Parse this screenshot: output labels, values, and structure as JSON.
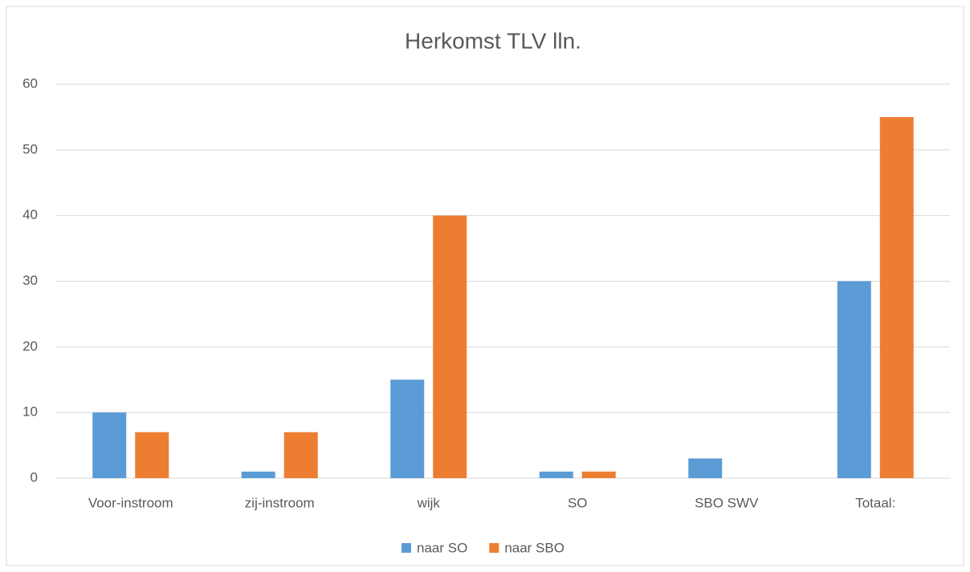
{
  "chart_data": {
    "type": "bar",
    "title": "Herkomst TLV lln.",
    "categories": [
      "Voor-instroom",
      "zij-instroom",
      "wijk",
      "SO",
      "SBO SWV",
      "Totaal:"
    ],
    "series": [
      {
        "name": "naar SO",
        "color": "#5b9bd5",
        "values": [
          10,
          1,
          15,
          1,
          3,
          30
        ]
      },
      {
        "name": "naar SBO",
        "color": "#ed7d31",
        "values": [
          7,
          7,
          40,
          1,
          0,
          55
        ]
      }
    ],
    "ylim": [
      0,
      60
    ],
    "yticks": [
      0,
      10,
      20,
      30,
      40,
      50,
      60
    ],
    "grid": true,
    "legend": "bottom"
  }
}
